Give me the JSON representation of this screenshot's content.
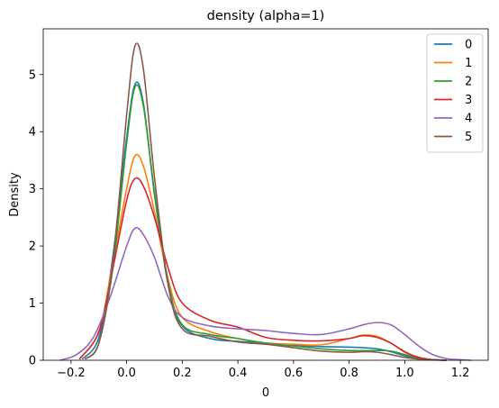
{
  "chart_data": {
    "type": "line",
    "title": "density (alpha=1)",
    "xlabel": "0",
    "ylabel": "Density",
    "xlim": [
      -0.3,
      1.3
    ],
    "ylim": [
      0,
      5.8
    ],
    "xticks": [
      -0.2,
      0.0,
      0.2,
      0.4,
      0.6,
      0.8,
      1.0,
      1.2
    ],
    "xtick_labels": [
      "−0.2",
      "0.0",
      "0.2",
      "0.4",
      "0.6",
      "0.8",
      "1.0",
      "1.2"
    ],
    "yticks": [
      0,
      1,
      2,
      3,
      4,
      5
    ],
    "ytick_labels": [
      "0",
      "1",
      "2",
      "3",
      "4",
      "5"
    ],
    "grid": false,
    "legend_position": "top-right",
    "series": [
      {
        "name": "0",
        "color": "#1f77b4",
        "x": [
          -0.16,
          -0.1,
          -0.05,
          0.0,
          0.03,
          0.06,
          0.1,
          0.15,
          0.2,
          0.3,
          0.4,
          0.5,
          0.6,
          0.7,
          0.8,
          0.85,
          0.9,
          0.95,
          1.0,
          1.05,
          1.1,
          1.15
        ],
        "y": [
          0.02,
          0.4,
          1.8,
          3.9,
          4.83,
          4.5,
          2.9,
          1.3,
          0.6,
          0.38,
          0.33,
          0.3,
          0.26,
          0.24,
          0.23,
          0.22,
          0.2,
          0.15,
          0.08,
          0.03,
          0.01,
          0.0
        ]
      },
      {
        "name": "1",
        "color": "#ff7f0e",
        "x": [
          -0.17,
          -0.1,
          -0.05,
          0.0,
          0.03,
          0.06,
          0.1,
          0.15,
          0.2,
          0.3,
          0.4,
          0.5,
          0.6,
          0.7,
          0.8,
          0.85,
          0.9,
          0.95,
          1.0,
          1.05,
          1.1,
          1.15
        ],
        "y": [
          0.02,
          0.5,
          1.7,
          3.0,
          3.58,
          3.4,
          2.6,
          1.4,
          0.75,
          0.5,
          0.38,
          0.3,
          0.28,
          0.27,
          0.38,
          0.44,
          0.42,
          0.3,
          0.14,
          0.05,
          0.01,
          0.0
        ]
      },
      {
        "name": "2",
        "color": "#2ca02c",
        "x": [
          -0.15,
          -0.1,
          -0.05,
          0.0,
          0.03,
          0.06,
          0.1,
          0.15,
          0.2,
          0.3,
          0.4,
          0.5,
          0.6,
          0.7,
          0.8,
          0.9,
          0.95,
          1.0,
          1.05,
          1.1,
          1.15
        ],
        "y": [
          0.02,
          0.3,
          1.6,
          3.8,
          4.78,
          4.45,
          2.95,
          1.35,
          0.62,
          0.45,
          0.38,
          0.3,
          0.25,
          0.2,
          0.17,
          0.17,
          0.16,
          0.1,
          0.04,
          0.01,
          0.0
        ]
      },
      {
        "name": "3",
        "color": "#d62728",
        "x": [
          -0.17,
          -0.1,
          -0.05,
          0.0,
          0.03,
          0.06,
          0.1,
          0.15,
          0.2,
          0.3,
          0.4,
          0.5,
          0.6,
          0.7,
          0.8,
          0.85,
          0.9,
          0.95,
          1.0,
          1.05,
          1.1,
          1.15
        ],
        "y": [
          0.02,
          0.5,
          1.6,
          2.8,
          3.18,
          3.05,
          2.5,
          1.6,
          1.0,
          0.7,
          0.58,
          0.4,
          0.35,
          0.34,
          0.38,
          0.43,
          0.4,
          0.3,
          0.15,
          0.05,
          0.01,
          0.0
        ]
      },
      {
        "name": "4",
        "color": "#9467bd",
        "x": [
          -0.24,
          -0.18,
          -0.12,
          -0.06,
          0.0,
          0.03,
          0.06,
          0.1,
          0.15,
          0.2,
          0.3,
          0.4,
          0.5,
          0.6,
          0.7,
          0.8,
          0.85,
          0.9,
          0.95,
          1.0,
          1.05,
          1.1,
          1.15,
          1.2,
          1.24
        ],
        "y": [
          0.0,
          0.1,
          0.4,
          1.1,
          2.0,
          2.31,
          2.2,
          1.8,
          1.1,
          0.75,
          0.6,
          0.55,
          0.52,
          0.47,
          0.45,
          0.55,
          0.62,
          0.66,
          0.62,
          0.45,
          0.25,
          0.1,
          0.03,
          0.01,
          0.0
        ]
      },
      {
        "name": "5",
        "color": "#8c564b",
        "x": [
          -0.15,
          -0.1,
          -0.05,
          0.0,
          0.03,
          0.06,
          0.1,
          0.15,
          0.2,
          0.3,
          0.4,
          0.5,
          0.6,
          0.7,
          0.8,
          0.85,
          0.9,
          0.95,
          1.0,
          1.05,
          1.1,
          1.15
        ],
        "y": [
          0.02,
          0.3,
          1.7,
          4.3,
          5.5,
          5.1,
          3.2,
          1.3,
          0.55,
          0.42,
          0.32,
          0.28,
          0.22,
          0.16,
          0.14,
          0.15,
          0.14,
          0.1,
          0.05,
          0.02,
          0.01,
          0.0
        ]
      }
    ]
  }
}
